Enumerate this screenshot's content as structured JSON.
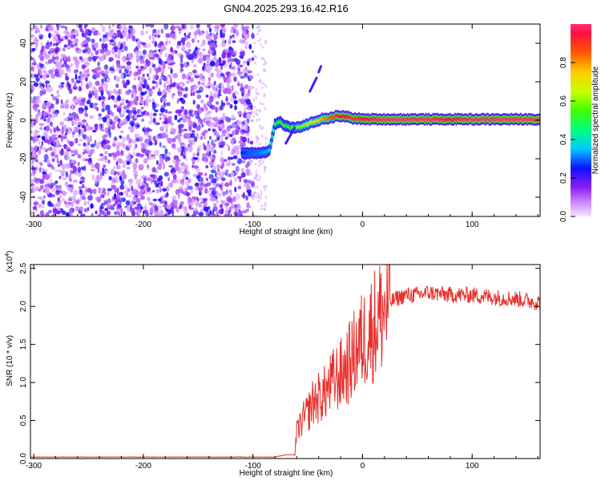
{
  "title": "GN04.2025.293.16.42.R16",
  "chart_data": [
    {
      "type": "heatmap",
      "xlabel": "Height of straight line (km)",
      "ylabel": "Frequency (Hz)",
      "xlim": [
        -303,
        162
      ],
      "ylim": [
        -50,
        50
      ],
      "x_ticks": [
        -300,
        -200,
        -100,
        0,
        100
      ],
      "y_ticks": [
        -40,
        -20,
        0,
        20,
        40
      ],
      "grid": false,
      "noise_region": {
        "x_range": [
          -303,
          -100
        ],
        "y_range": [
          -50,
          50
        ]
      },
      "ridge": {
        "x": [
          -110,
          -100,
          -95,
          -85,
          -80,
          -75,
          -70,
          -65,
          -60,
          -55,
          -50,
          -45,
          -40,
          -35,
          -30,
          -25,
          -20,
          -15,
          -10,
          -5,
          0,
          20,
          40,
          60,
          80,
          100,
          120,
          140,
          162
        ],
        "frequency": [
          -17,
          -17,
          -17,
          -16,
          -2,
          -1,
          -3,
          -4,
          -4,
          -3,
          -2,
          -1,
          0,
          1,
          1,
          2,
          2,
          2,
          1,
          1,
          0.5,
          0.5,
          0.5,
          0.5,
          0.5,
          0.5,
          0.5,
          0.5,
          0.5
        ],
        "amplitude": [
          0.25,
          0.3,
          0.3,
          0.35,
          0.45,
          0.55,
          0.5,
          0.55,
          0.6,
          0.6,
          0.65,
          0.7,
          0.75,
          0.8,
          0.85,
          0.9,
          0.95,
          0.95,
          0.9,
          0.9,
          0.95,
          1.0,
          1.0,
          1.0,
          0.95,
          1.0,
          1.0,
          1.0,
          1.0
        ]
      },
      "colorbar": {
        "label": "Normalized spectral amplitude",
        "range": [
          0.0,
          1.0
        ],
        "ticks": [
          "0.0",
          "0.2",
          "0.4",
          "0.6",
          "0.8"
        ]
      }
    },
    {
      "type": "line",
      "xlabel": "Height of straight line (km)",
      "ylabel": "SNR (10 * v/v)",
      "multiplier_base": "(x10",
      "multiplier_exp": "4",
      "multiplier_close": ")",
      "xlim": [
        -303,
        162
      ],
      "ylim": [
        0,
        2.55
      ],
      "x_ticks": [
        -300,
        -200,
        -100,
        0,
        100
      ],
      "y_ticks": [
        "0.0",
        "0.5",
        "1.0",
        "1.5",
        "2.0",
        "2.5"
      ],
      "color": "#e8302c",
      "series": [
        {
          "x": [
            -303,
            -200,
            -120,
            -80,
            -70,
            -62,
            -60,
            -55,
            -50,
            -45,
            -40,
            -35,
            -30,
            -25,
            -20,
            -15,
            -10,
            -5,
            0,
            5,
            10,
            15,
            20,
            25,
            30,
            40,
            50,
            60,
            80,
            100,
            120,
            140,
            162
          ],
          "y": [
            0.02,
            0.02,
            0.02,
            0.02,
            0.05,
            0.05,
            0.35,
            0.5,
            0.6,
            0.75,
            0.8,
            0.85,
            0.95,
            1.05,
            1.1,
            1.2,
            1.3,
            1.45,
            1.55,
            1.65,
            1.75,
            1.85,
            1.95,
            2.05,
            2.1,
            2.15,
            2.15,
            2.18,
            2.15,
            2.15,
            2.12,
            2.1,
            2.05
          ]
        }
      ]
    }
  ]
}
